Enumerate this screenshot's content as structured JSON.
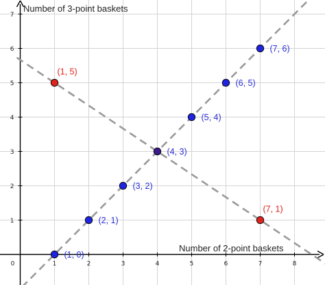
{
  "chart_data": {
    "type": "scatter",
    "xlabel": "Number of 2-point baskets",
    "ylabel": "Number of 3-point baskets",
    "xlim": [
      -0.25,
      8.9
    ],
    "ylim": [
      -0.9,
      7.4
    ],
    "x_ticks": [
      0,
      1,
      2,
      3,
      4,
      5,
      6,
      7,
      8
    ],
    "y_ticks": [
      1,
      2,
      3,
      4,
      5,
      6,
      7
    ],
    "grid": true,
    "lines": [
      {
        "style": "dashed",
        "color": "#999999",
        "slope": 1,
        "intercept": -1
      },
      {
        "style": "dashed",
        "color": "#999999",
        "slope": -0.6666667,
        "intercept": 5.6666667
      }
    ],
    "points": [
      {
        "x": 1,
        "y": 0,
        "label": "(1, 0)",
        "color": "#1f24e0",
        "label_color": "#2b2fd4"
      },
      {
        "x": 2,
        "y": 1,
        "label": "(2, 1)",
        "color": "#1f24e0",
        "label_color": "#2b2fd4"
      },
      {
        "x": 3,
        "y": 2,
        "label": "(3, 2)",
        "color": "#1f24e0",
        "label_color": "#2b2fd4"
      },
      {
        "x": 4,
        "y": 3,
        "label": "(4, 3)",
        "color": "#3a1a8c",
        "label_color": "#2b2fd4"
      },
      {
        "x": 5,
        "y": 4,
        "label": "(5, 4)",
        "color": "#1f24e0",
        "label_color": "#2b2fd4"
      },
      {
        "x": 6,
        "y": 5,
        "label": "(6, 5)",
        "color": "#1f24e0",
        "label_color": "#2b2fd4"
      },
      {
        "x": 7,
        "y": 6,
        "label": "(7, 6)",
        "color": "#1f24e0",
        "label_color": "#2b2fd4"
      },
      {
        "x": 1,
        "y": 5,
        "label": "(1, 5)",
        "color": "#e0231c",
        "label_color": "#e0231c"
      },
      {
        "x": 7,
        "y": 1,
        "label": "(7, 1)",
        "color": "#e0231c",
        "label_color": "#e0231c"
      }
    ]
  }
}
